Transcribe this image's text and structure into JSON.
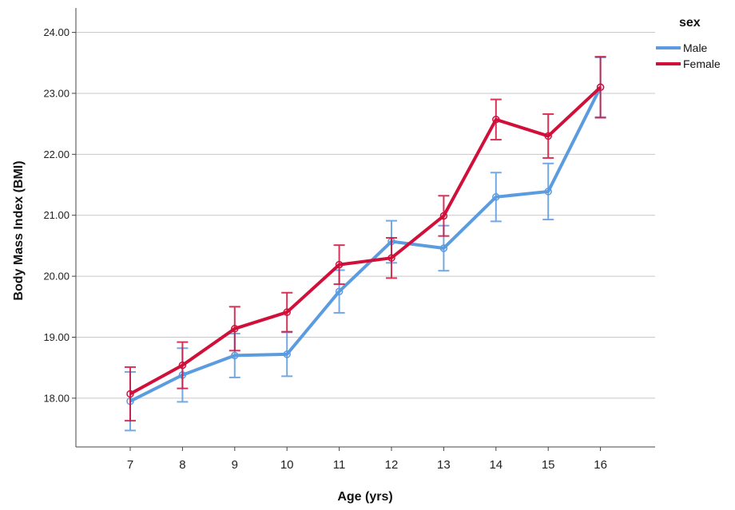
{
  "chart_data": {
    "type": "line",
    "xlabel": "Age (yrs)",
    "ylabel": "Body Mass Index (BMI)",
    "x": [
      7,
      8,
      9,
      10,
      11,
      12,
      13,
      14,
      15,
      16
    ],
    "x_tick_labels": [
      "7",
      "8",
      "9",
      "10",
      "11",
      "12",
      "13",
      "14",
      "15",
      "16"
    ],
    "y_ticks": [
      18,
      19,
      20,
      21,
      22,
      23,
      24
    ],
    "y_tick_labels": [
      "18.00",
      "19.00",
      "20.00",
      "21.00",
      "22.00",
      "23.00",
      "24.00"
    ],
    "ylim": [
      17.2,
      24.4
    ],
    "grid": "horizontal",
    "legend_title": "sex",
    "legend_position": "top-right",
    "error_bars": true,
    "series": [
      {
        "name": "Male",
        "color": "#5b9bdf",
        "values": [
          17.95,
          18.38,
          18.7,
          18.72,
          19.75,
          20.57,
          20.46,
          21.3,
          21.39,
          23.1
        ],
        "error_low": [
          17.47,
          17.94,
          18.34,
          18.36,
          19.4,
          20.22,
          20.09,
          20.9,
          20.93,
          22.61
        ],
        "error_high": [
          18.43,
          18.82,
          19.06,
          19.08,
          20.1,
          20.91,
          20.83,
          21.7,
          21.85,
          23.59
        ]
      },
      {
        "name": "Female",
        "color": "#d0103a",
        "values": [
          18.07,
          18.54,
          19.14,
          19.41,
          20.19,
          20.3,
          20.99,
          22.57,
          22.3,
          23.1
        ],
        "error_low": [
          17.63,
          18.16,
          18.78,
          19.09,
          19.87,
          19.97,
          20.66,
          22.24,
          21.94,
          22.6
        ],
        "error_high": [
          18.51,
          18.92,
          19.5,
          19.73,
          20.51,
          20.63,
          21.32,
          22.9,
          22.66,
          23.6
        ]
      }
    ]
  }
}
